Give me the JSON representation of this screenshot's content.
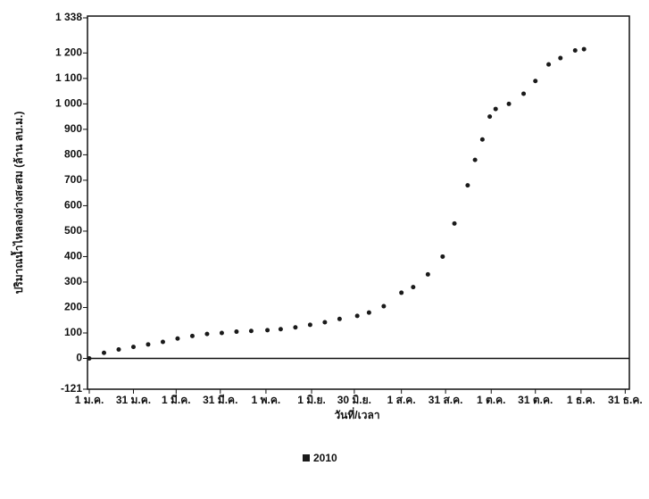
{
  "chart_data": {
    "type": "scatter",
    "xlabel": "วันที่/เวลา",
    "ylabel": "ปริมาณน้ำไหลลงอ่างสะสม (ล้าน ลบ.ม.)",
    "xlim": [
      0,
      365
    ],
    "xticks": [
      {
        "value": 0,
        "label": "1 ม.ค."
      },
      {
        "value": 30,
        "label": "31 ม.ค."
      },
      {
        "value": 59,
        "label": "1 มี.ค."
      },
      {
        "value": 89,
        "label": "31 มี.ค."
      },
      {
        "value": 120,
        "label": "1 พ.ค."
      },
      {
        "value": 151,
        "label": "1 มิ.ย."
      },
      {
        "value": 180,
        "label": "30 มิ.ย."
      },
      {
        "value": 212,
        "label": "1 ส.ค."
      },
      {
        "value": 242,
        "label": "31 ส.ค."
      },
      {
        "value": 273,
        "label": "1 ต.ค."
      },
      {
        "value": 303,
        "label": "31 ต.ค."
      },
      {
        "value": 334,
        "label": "1 ธ.ค."
      },
      {
        "value": 364,
        "label": "31 ธ.ค."
      }
    ],
    "ylim": [
      -121,
      1338
    ],
    "yticks": [
      -121,
      0,
      100,
      200,
      300,
      400,
      500,
      600,
      700,
      800,
      900,
      {
        "value": 1000,
        "label": "1 000"
      },
      {
        "value": 1100,
        "label": "1 100"
      },
      {
        "value": 1200,
        "label": "1 200"
      },
      {
        "value": 1338,
        "label": "1 338"
      }
    ],
    "series": [
      {
        "name": "2010",
        "color": "#1a1a1a",
        "x": [
          0,
          10,
          20,
          30,
          40,
          50,
          60,
          70,
          80,
          90,
          100,
          110,
          121,
          130,
          140,
          150,
          160,
          170,
          182,
          190,
          200,
          212,
          220,
          230,
          240,
          248,
          257,
          262,
          267,
          272,
          276,
          285,
          295,
          303,
          312,
          320,
          330,
          336
        ],
        "values": [
          0,
          22,
          35,
          45,
          55,
          65,
          78,
          88,
          96,
          100,
          105,
          108,
          111,
          115,
          122,
          132,
          142,
          155,
          167,
          180,
          205,
          258,
          280,
          330,
          400,
          530,
          680,
          780,
          860,
          950,
          980,
          1000,
          1040,
          1090,
          1155,
          1180,
          1210,
          1215
        ]
      }
    ]
  }
}
